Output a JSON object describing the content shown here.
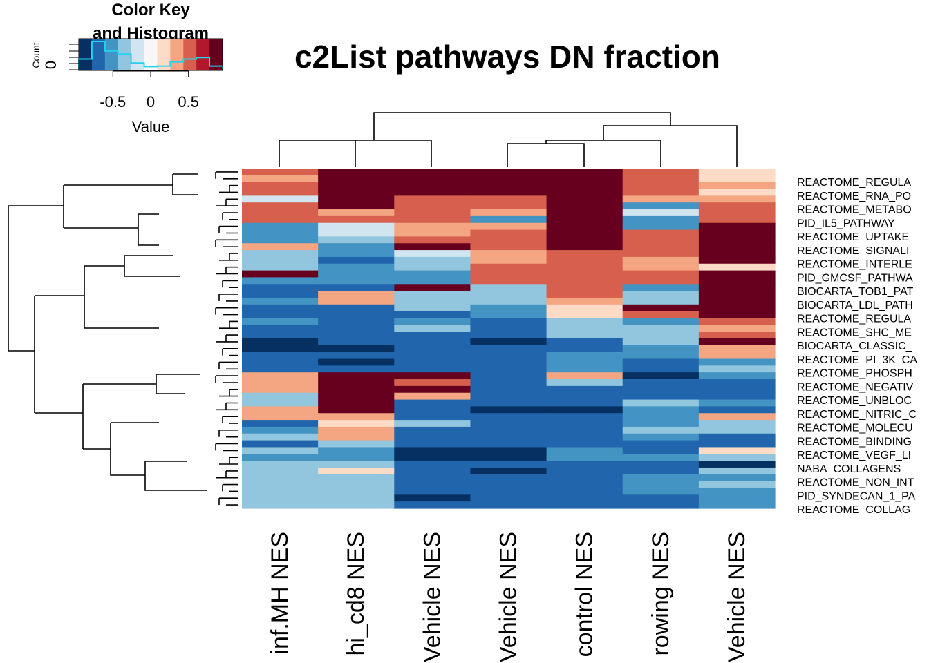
{
  "chart_data": {
    "type": "heatmap",
    "title": "c2List pathways DN fraction",
    "color_key": {
      "title_line1": "Color Key",
      "title_line2": "and Histogram",
      "ylabel": "Count",
      "ytick": "0",
      "xlabel": "Value",
      "xticks": [
        {
          "value": -0.5,
          "label": "-0.5"
        },
        {
          "value": 0,
          "label": "0"
        },
        {
          "value": 0.5,
          "label": "0.5"
        }
      ],
      "range": [
        -0.95,
        0.95
      ],
      "palette": [
        "#053061",
        "#2166ac",
        "#4393c3",
        "#92c5de",
        "#d1e5f0",
        "#f7f7f7",
        "#fddbc7",
        "#f4a582",
        "#d6604d",
        "#b2182b",
        "#67001f"
      ],
      "histogram_color": "#22d3ee",
      "histogram_counts": [
        20,
        55,
        36,
        30,
        12,
        5,
        6,
        14,
        20,
        23,
        6
      ]
    },
    "columns": [
      "inf.MH NES",
      "hi_cd8 NES",
      "Vehicle NES",
      "Vehicle NES",
      "control NES",
      "rowing NES",
      "Vehicle NES"
    ],
    "row_labels": [
      "REACTOME_REGULA",
      "REACTOME_RNA_PO",
      "REACTOME_METABO",
      "PID_IL5_PATHWAY",
      "REACTOME_UPTAKE_",
      "REACTOME_SIGNALI",
      "REACTOME_INTERLE",
      "PID_GMCSF_PATHWA",
      "BIOCARTA_TOB1_PAT",
      "BIOCARTA_LDL_PATH",
      "REACTOME_REGULA",
      "REACTOME_SHC_ME",
      "BIOCARTA_CLASSIC_",
      "REACTOME_PI_3K_CA",
      "REACTOME_PHOSPH",
      "REACTOME_NEGATIV",
      "REACTOME_UNBLOC",
      "REACTOME_NITRIC_C",
      "REACTOME_MOLECU",
      "REACTOME_BINDING",
      "REACTOME_VEGF_LI",
      "NABA_COLLAGENS",
      "REACTOME_NON_INT",
      "PID_SYNDECAN_1_PA",
      "REACTOME_COLLAG"
    ],
    "values": [
      [
        0.6,
        0.8,
        0.8,
        0.8,
        0.8,
        0.6,
        0.2
      ],
      [
        0.3,
        0.8,
        0.8,
        0.8,
        0.8,
        0.6,
        0.2
      ],
      [
        0.6,
        0.8,
        0.8,
        0.8,
        0.8,
        0.6,
        0.3
      ],
      [
        0.6,
        0.8,
        0.8,
        0.8,
        0.8,
        0.6,
        0.2
      ],
      [
        -0.1,
        0.8,
        0.6,
        0.6,
        0.8,
        0.4,
        0.3
      ],
      [
        0.6,
        0.8,
        0.6,
        0.6,
        0.8,
        -0.5,
        0.6
      ],
      [
        0.6,
        0.3,
        0.6,
        0.4,
        0.9,
        -0.1,
        0.6
      ],
      [
        0.6,
        0.6,
        0.6,
        -0.5,
        0.9,
        -0.5,
        0.6
      ],
      [
        -0.5,
        -0.1,
        0.4,
        0.4,
        0.8,
        -0.5,
        0.8
      ],
      [
        -0.5,
        -0.1,
        0.4,
        0.6,
        0.8,
        0.6,
        0.8
      ],
      [
        -0.5,
        -0.3,
        0.6,
        0.6,
        0.8,
        0.6,
        0.8
      ],
      [
        0.4,
        -0.5,
        0.8,
        0.6,
        0.8,
        0.6,
        0.8
      ],
      [
        -0.3,
        -0.5,
        -0.1,
        0.4,
        0.6,
        0.6,
        0.8
      ],
      [
        -0.3,
        -0.7,
        -0.3,
        0.4,
        0.6,
        0.4,
        0.8
      ],
      [
        -0.3,
        -0.5,
        -0.3,
        0.6,
        0.6,
        0.4,
        0.2
      ],
      [
        0.8,
        -0.5,
        -0.5,
        0.6,
        0.6,
        0.6,
        0.8
      ],
      [
        -0.5,
        -0.5,
        -0.5,
        0.6,
        0.6,
        0.6,
        0.8
      ],
      [
        -0.7,
        -0.7,
        0.8,
        -0.3,
        0.6,
        -0.5,
        0.9
      ],
      [
        -0.7,
        0.4,
        -0.3,
        -0.3,
        0.6,
        -0.3,
        0.8
      ],
      [
        -0.5,
        0.4,
        -0.3,
        -0.3,
        0.4,
        -0.3,
        0.8
      ],
      [
        -0.7,
        -0.7,
        -0.3,
        -0.5,
        0.2,
        0.8,
        0.8
      ],
      [
        -0.7,
        -0.7,
        -0.7,
        -0.5,
        0.2,
        0.6,
        0.8
      ],
      [
        -0.5,
        -0.7,
        -0.5,
        -0.7,
        -0.3,
        -0.5,
        0.6
      ],
      [
        -0.7,
        -0.7,
        -0.3,
        -0.7,
        -0.3,
        -0.3,
        0.4
      ],
      [
        -0.7,
        -0.7,
        -0.7,
        -0.7,
        -0.3,
        -0.3,
        0.6
      ],
      [
        -0.9,
        -0.7,
        -0.7,
        -0.9,
        -0.7,
        -0.3,
        0.9
      ],
      [
        -0.9,
        -0.9,
        -0.7,
        -0.7,
        -0.7,
        -0.5,
        0.4
      ],
      [
        -0.7,
        -0.7,
        -0.7,
        -0.7,
        -0.5,
        -0.5,
        0.4
      ],
      [
        -0.7,
        -0.9,
        -0.7,
        -0.7,
        -0.5,
        -0.7,
        -0.5
      ],
      [
        -0.7,
        -0.7,
        -0.7,
        -0.7,
        -0.5,
        -0.7,
        -0.3
      ],
      [
        0.4,
        0.9,
        0.9,
        -0.7,
        0.4,
        -0.9,
        -0.5
      ],
      [
        0.4,
        0.8,
        0.6,
        -0.7,
        -0.3,
        -0.7,
        -0.7
      ],
      [
        0.4,
        0.8,
        0.8,
        -0.7,
        -0.7,
        -0.7,
        -0.7
      ],
      [
        -0.3,
        0.8,
        0.4,
        -0.7,
        -0.7,
        -0.7,
        -0.7
      ],
      [
        -0.3,
        0.8,
        -0.7,
        -0.7,
        -0.7,
        -0.3,
        -0.5
      ],
      [
        0.4,
        0.8,
        -0.7,
        -0.9,
        -0.9,
        -0.5,
        -0.7
      ],
      [
        0.4,
        0.4,
        -0.7,
        -0.7,
        -0.7,
        -0.5,
        0.4
      ],
      [
        -0.7,
        0.2,
        -0.3,
        -0.7,
        -0.7,
        -0.5,
        -0.3
      ],
      [
        -0.5,
        0.4,
        -0.7,
        -0.7,
        -0.7,
        -0.3,
        -0.3
      ],
      [
        -0.3,
        0.4,
        -0.7,
        -0.7,
        -0.7,
        -0.5,
        -0.7
      ],
      [
        -0.7,
        -0.3,
        -0.7,
        -0.7,
        -0.7,
        -0.7,
        -0.7
      ],
      [
        -0.3,
        -0.5,
        -0.9,
        -0.9,
        -0.5,
        -0.7,
        0.2
      ],
      [
        -0.5,
        -0.5,
        -0.9,
        -0.9,
        -0.5,
        -0.5,
        -0.3
      ],
      [
        -0.3,
        -0.3,
        -0.7,
        -0.7,
        -0.7,
        -0.7,
        -0.9
      ],
      [
        -0.3,
        0.2,
        -0.7,
        -0.9,
        -0.7,
        -0.7,
        -0.3
      ],
      [
        -0.3,
        -0.3,
        -0.7,
        -0.7,
        -0.7,
        -0.5,
        -0.5
      ],
      [
        -0.3,
        -0.3,
        -0.7,
        -0.7,
        -0.7,
        -0.5,
        -0.3
      ],
      [
        -0.3,
        -0.3,
        -0.7,
        -0.7,
        -0.7,
        -0.5,
        -0.5
      ],
      [
        -0.3,
        -0.3,
        -0.9,
        -0.7,
        -0.7,
        -0.7,
        -0.5
      ],
      [
        -0.3,
        -0.3,
        -0.7,
        -0.7,
        -0.7,
        -0.7,
        -0.5
      ]
    ]
  }
}
